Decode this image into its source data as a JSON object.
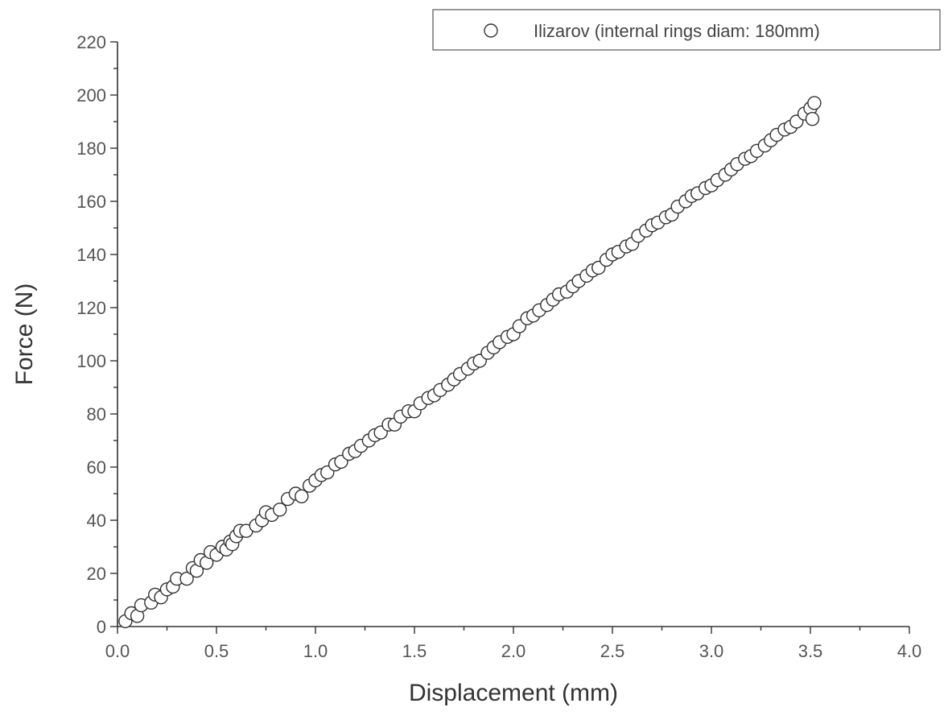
{
  "chart_data": {
    "type": "scatter",
    "title": "",
    "xlabel": "Displacement (mm)",
    "ylabel": "Force (N)",
    "xlim": [
      0.0,
      4.0
    ],
    "ylim": [
      0,
      220
    ],
    "x_ticks": [
      "0.0",
      "0.5",
      "1.0",
      "1.5",
      "2.0",
      "2.5",
      "3.0",
      "3.5",
      "4.0"
    ],
    "y_ticks": [
      "0",
      "20",
      "40",
      "60",
      "80",
      "100",
      "120",
      "140",
      "160",
      "180",
      "200",
      "220"
    ],
    "grid": false,
    "legend_position": "top-right",
    "marker": "open-circle",
    "series": [
      {
        "name": "Ilizarov (internal rings diam: 180mm)",
        "color": "#333333",
        "points": [
          [
            0.04,
            2
          ],
          [
            0.07,
            5
          ],
          [
            0.1,
            4
          ],
          [
            0.12,
            8
          ],
          [
            0.17,
            9
          ],
          [
            0.19,
            12
          ],
          [
            0.22,
            11
          ],
          [
            0.25,
            14
          ],
          [
            0.28,
            15
          ],
          [
            0.3,
            18
          ],
          [
            0.35,
            18
          ],
          [
            0.38,
            22
          ],
          [
            0.4,
            21
          ],
          [
            0.42,
            25
          ],
          [
            0.45,
            24
          ],
          [
            0.47,
            28
          ],
          [
            0.5,
            27
          ],
          [
            0.53,
            30
          ],
          [
            0.55,
            29
          ],
          [
            0.57,
            32
          ],
          [
            0.58,
            31
          ],
          [
            0.6,
            34
          ],
          [
            0.62,
            36
          ],
          [
            0.65,
            36
          ],
          [
            0.7,
            38
          ],
          [
            0.73,
            40
          ],
          [
            0.75,
            43
          ],
          [
            0.78,
            42
          ],
          [
            0.82,
            44
          ],
          [
            0.86,
            48
          ],
          [
            0.9,
            50
          ],
          [
            0.93,
            49
          ],
          [
            0.97,
            53
          ],
          [
            1.0,
            55
          ],
          [
            1.03,
            57
          ],
          [
            1.06,
            58
          ],
          [
            1.1,
            61
          ],
          [
            1.13,
            62
          ],
          [
            1.17,
            65
          ],
          [
            1.2,
            66
          ],
          [
            1.23,
            68
          ],
          [
            1.27,
            70
          ],
          [
            1.3,
            72
          ],
          [
            1.33,
            73
          ],
          [
            1.37,
            76
          ],
          [
            1.4,
            76
          ],
          [
            1.43,
            79
          ],
          [
            1.47,
            81
          ],
          [
            1.5,
            81
          ],
          [
            1.53,
            84
          ],
          [
            1.57,
            86
          ],
          [
            1.6,
            87
          ],
          [
            1.63,
            89
          ],
          [
            1.67,
            91
          ],
          [
            1.7,
            93
          ],
          [
            1.73,
            95
          ],
          [
            1.77,
            97
          ],
          [
            1.8,
            99
          ],
          [
            1.83,
            100
          ],
          [
            1.87,
            103
          ],
          [
            1.9,
            105
          ],
          [
            1.93,
            107
          ],
          [
            1.97,
            109
          ],
          [
            2.0,
            110
          ],
          [
            2.03,
            113
          ],
          [
            2.07,
            116
          ],
          [
            2.1,
            117
          ],
          [
            2.13,
            119
          ],
          [
            2.17,
            121
          ],
          [
            2.2,
            123
          ],
          [
            2.23,
            125
          ],
          [
            2.27,
            126
          ],
          [
            2.3,
            128
          ],
          [
            2.33,
            130
          ],
          [
            2.37,
            132
          ],
          [
            2.4,
            134
          ],
          [
            2.43,
            135
          ],
          [
            2.47,
            138
          ],
          [
            2.5,
            140
          ],
          [
            2.53,
            141
          ],
          [
            2.57,
            143
          ],
          [
            2.6,
            144
          ],
          [
            2.63,
            147
          ],
          [
            2.67,
            149
          ],
          [
            2.7,
            151
          ],
          [
            2.73,
            152
          ],
          [
            2.77,
            154
          ],
          [
            2.8,
            155
          ],
          [
            2.83,
            158
          ],
          [
            2.87,
            160
          ],
          [
            2.9,
            162
          ],
          [
            2.93,
            163
          ],
          [
            2.97,
            165
          ],
          [
            3.0,
            166
          ],
          [
            3.03,
            168
          ],
          [
            3.07,
            170
          ],
          [
            3.1,
            172
          ],
          [
            3.13,
            174
          ],
          [
            3.17,
            176
          ],
          [
            3.2,
            177
          ],
          [
            3.23,
            179
          ],
          [
            3.27,
            181
          ],
          [
            3.3,
            183
          ],
          [
            3.33,
            185
          ],
          [
            3.37,
            187
          ],
          [
            3.4,
            188
          ],
          [
            3.43,
            190
          ],
          [
            3.47,
            193
          ],
          [
            3.5,
            195
          ],
          [
            3.52,
            197
          ],
          [
            3.51,
            191
          ]
        ]
      }
    ]
  }
}
